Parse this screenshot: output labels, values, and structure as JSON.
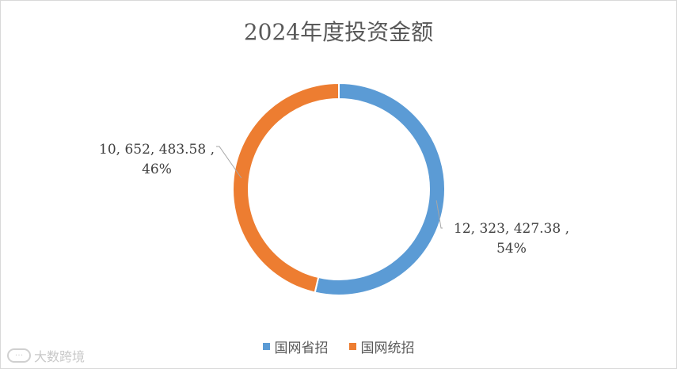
{
  "chart_data": {
    "type": "pie",
    "title": "2024年度投资金额",
    "donut": true,
    "legend_position": "bottom",
    "series": [
      {
        "name": "国网省招",
        "value": 12323427.38,
        "label_value": "12,323,427.38",
        "label_percent": "54%",
        "color": "#5b9bd5"
      },
      {
        "name": "国网统招",
        "value": 10652483.58,
        "label_value": "10,652,483.58",
        "label_percent": "46%",
        "color": "#ed7d31"
      }
    ]
  },
  "watermark": {
    "text": "大数跨境",
    "logo_icon": "bubble-logo-icon"
  }
}
